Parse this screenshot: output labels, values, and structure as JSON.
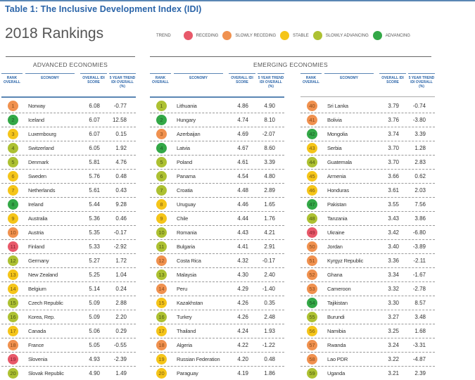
{
  "title": "Table 1: The Inclusive Development Index (IDI)",
  "subtitle": "2018 Rankings",
  "legend": {
    "label": "TREND",
    "items": [
      {
        "key": "receding",
        "label": "RECEDING",
        "color": "#e8596a"
      },
      {
        "key": "slowly_receding",
        "label": "SLOWLY RECEDING",
        "color": "#f0914f"
      },
      {
        "key": "stable",
        "label": "STABLE",
        "color": "#f5c519"
      },
      {
        "key": "slowly_advancing",
        "label": "SLOWLY ADVANCING",
        "color": "#adc132"
      },
      {
        "key": "advancing",
        "label": "ADVANCING",
        "color": "#33a847"
      }
    ]
  },
  "columns": {
    "rank": "RANK OVERALL",
    "economy": "ECONOMY",
    "score": "OVERALL IDI SCORE",
    "trend": "5 YEAR TREND IDI OVERALL (%)"
  },
  "advanced": {
    "heading": "ADVANCED ECONOMIES",
    "rows": [
      {
        "rank": "1",
        "economy": "Norway",
        "score": "6.08",
        "trend": "-0.77",
        "status": "slowly_receding"
      },
      {
        "rank": "2",
        "economy": "Iceland",
        "score": "6.07",
        "trend": "12.58",
        "status": "advancing"
      },
      {
        "rank": "3",
        "economy": "Luxembourg",
        "score": "6.07",
        "trend": "0.15",
        "status": "stable"
      },
      {
        "rank": "4",
        "economy": "Switzerland",
        "score": "6.05",
        "trend": "1.92",
        "status": "slowly_advancing"
      },
      {
        "rank": "5",
        "economy": "Denmark",
        "score": "5.81",
        "trend": "4.76",
        "status": "slowly_advancing"
      },
      {
        "rank": "6",
        "economy": "Sweden",
        "score": "5.76",
        "trend": "0.48",
        "status": "stable"
      },
      {
        "rank": "7",
        "economy": "Netherlands",
        "score": "5.61",
        "trend": "0.43",
        "status": "stable"
      },
      {
        "rank": "8",
        "economy": "Ireland",
        "score": "5.44",
        "trend": "9.28",
        "status": "advancing"
      },
      {
        "rank": "9",
        "economy": "Australia",
        "score": "5.36",
        "trend": "0.46",
        "status": "stable"
      },
      {
        "rank": "10",
        "economy": "Austria",
        "score": "5.35",
        "trend": "-0.17",
        "status": "slowly_receding"
      },
      {
        "rank": "11",
        "economy": "Finland",
        "score": "5.33",
        "trend": "-2.92",
        "status": "receding"
      },
      {
        "rank": "12",
        "economy": "Germany",
        "score": "5.27",
        "trend": "1.72",
        "status": "slowly_advancing"
      },
      {
        "rank": "13",
        "economy": "New Zealand",
        "score": "5.25",
        "trend": "1.04",
        "status": "stable"
      },
      {
        "rank": "14",
        "economy": "Belgium",
        "score": "5.14",
        "trend": "0.24",
        "status": "stable"
      },
      {
        "rank": "15",
        "economy": "Czech Republic",
        "score": "5.09",
        "trend": "2.88",
        "status": "slowly_advancing"
      },
      {
        "rank": "16",
        "economy": "Korea, Rep.",
        "score": "5.09",
        "trend": "2.20",
        "status": "slowly_advancing"
      },
      {
        "rank": "17",
        "economy": "Canada",
        "score": "5.06",
        "trend": "0.29",
        "status": "stable"
      },
      {
        "rank": "18",
        "economy": "France",
        "score": "5.05",
        "trend": "-0.55",
        "status": "slowly_receding"
      },
      {
        "rank": "19",
        "economy": "Slovenia",
        "score": "4.93",
        "trend": "-2.39",
        "status": "receding"
      },
      {
        "rank": "20",
        "economy": "Slovak Republic",
        "score": "4.90",
        "trend": "1.49",
        "status": "slowly_advancing"
      }
    ]
  },
  "emerging": {
    "heading": "EMERGING ECONOMIES",
    "rows_a": [
      {
        "rank": "1",
        "economy": "Lithuania",
        "score": "4.86",
        "trend": "4.90",
        "status": "slowly_advancing"
      },
      {
        "rank": "2",
        "economy": "Hungary",
        "score": "4.74",
        "trend": "8.10",
        "status": "advancing"
      },
      {
        "rank": "3",
        "economy": "Azerbaijan",
        "score": "4.69",
        "trend": "-2.07",
        "status": "slowly_receding"
      },
      {
        "rank": "4",
        "economy": "Latvia",
        "score": "4.67",
        "trend": "8.60",
        "status": "advancing"
      },
      {
        "rank": "5",
        "economy": "Poland",
        "score": "4.61",
        "trend": "3.39",
        "status": "slowly_advancing"
      },
      {
        "rank": "6",
        "economy": "Panama",
        "score": "4.54",
        "trend": "4.80",
        "status": "slowly_advancing"
      },
      {
        "rank": "7",
        "economy": "Croatia",
        "score": "4.48",
        "trend": "2.89",
        "status": "slowly_advancing"
      },
      {
        "rank": "8",
        "economy": "Uruguay",
        "score": "4.46",
        "trend": "1.65",
        "status": "stable"
      },
      {
        "rank": "9",
        "economy": "Chile",
        "score": "4.44",
        "trend": "1.76",
        "status": "stable"
      },
      {
        "rank": "10",
        "economy": "Romania",
        "score": "4.43",
        "trend": "4.21",
        "status": "slowly_advancing"
      },
      {
        "rank": "11",
        "economy": "Bulgaria",
        "score": "4.41",
        "trend": "2.91",
        "status": "slowly_advancing"
      },
      {
        "rank": "12",
        "economy": "Costa Rica",
        "score": "4.32",
        "trend": "-0.17",
        "status": "slowly_receding"
      },
      {
        "rank": "13",
        "economy": "Malaysia",
        "score": "4.30",
        "trend": "2.40",
        "status": "slowly_advancing"
      },
      {
        "rank": "14",
        "economy": "Peru",
        "score": "4.29",
        "trend": "-1.40",
        "status": "slowly_receding"
      },
      {
        "rank": "15",
        "economy": "Kazakhstan",
        "score": "4.26",
        "trend": "0.35",
        "status": "stable"
      },
      {
        "rank": "16",
        "economy": "Turkey",
        "score": "4.26",
        "trend": "2.48",
        "status": "slowly_advancing"
      },
      {
        "rank": "17",
        "economy": "Thailand",
        "score": "4.24",
        "trend": "1.93",
        "status": "stable"
      },
      {
        "rank": "18",
        "economy": "Algeria",
        "score": "4.22",
        "trend": "-1.22",
        "status": "slowly_receding"
      },
      {
        "rank": "19",
        "economy": "Russian Federation",
        "score": "4.20",
        "trend": "0.48",
        "status": "stable"
      },
      {
        "rank": "20",
        "economy": "Paraguay",
        "score": "4.19",
        "trend": "1.86",
        "status": "stable"
      }
    ],
    "rows_b": [
      {
        "rank": "40",
        "economy": "Sri Lanka",
        "score": "3.79",
        "trend": "-0.74",
        "status": "slowly_receding"
      },
      {
        "rank": "41",
        "economy": "Bolivia",
        "score": "3.76",
        "trend": "-3.80",
        "status": "slowly_receding"
      },
      {
        "rank": "42",
        "economy": "Mongolia",
        "score": "3.74",
        "trend": "3.39",
        "status": "advancing"
      },
      {
        "rank": "43",
        "economy": "Serbia",
        "score": "3.70",
        "trend": "1.28",
        "status": "stable"
      },
      {
        "rank": "44",
        "economy": "Guatemala",
        "score": "3.70",
        "trend": "2.83",
        "status": "slowly_advancing"
      },
      {
        "rank": "45",
        "economy": "Armenia",
        "score": "3.66",
        "trend": "0.62",
        "status": "stable"
      },
      {
        "rank": "46",
        "economy": "Honduras",
        "score": "3.61",
        "trend": "2.03",
        "status": "stable"
      },
      {
        "rank": "47",
        "economy": "Pakistan",
        "score": "3.55",
        "trend": "7.56",
        "status": "advancing"
      },
      {
        "rank": "48",
        "economy": "Tanzania",
        "score": "3.43",
        "trend": "3.86",
        "status": "slowly_advancing"
      },
      {
        "rank": "49",
        "economy": "Ukraine",
        "score": "3.42",
        "trend": "-6.80",
        "status": "receding"
      },
      {
        "rank": "50",
        "economy": "Jordan",
        "score": "3.40",
        "trend": "-3.89",
        "status": "slowly_receding"
      },
      {
        "rank": "51",
        "economy": "Kyrgyz Republic",
        "score": "3.36",
        "trend": "-2.11",
        "status": "slowly_receding"
      },
      {
        "rank": "52",
        "economy": "Ghana",
        "score": "3.34",
        "trend": "-1.67",
        "status": "slowly_receding"
      },
      {
        "rank": "53",
        "economy": "Cameroon",
        "score": "3.32",
        "trend": "-2.78",
        "status": "slowly_receding"
      },
      {
        "rank": "54",
        "economy": "Tajikistan",
        "score": "3.30",
        "trend": "8.57",
        "status": "advancing"
      },
      {
        "rank": "55",
        "economy": "Burundi",
        "score": "3.27",
        "trend": "3.48",
        "status": "slowly_advancing"
      },
      {
        "rank": "56",
        "economy": "Namibia",
        "score": "3.25",
        "trend": "1.68",
        "status": "stable"
      },
      {
        "rank": "57",
        "economy": "Rwanda",
        "score": "3.24",
        "trend": "-3.31",
        "status": "slowly_receding"
      },
      {
        "rank": "58",
        "economy": "Lao PDR",
        "score": "3.22",
        "trend": "-4.87",
        "status": "slowly_receding"
      },
      {
        "rank": "59",
        "economy": "Uganda",
        "score": "3.21",
        "trend": "2.39",
        "status": "slowly_advancing"
      }
    ]
  }
}
